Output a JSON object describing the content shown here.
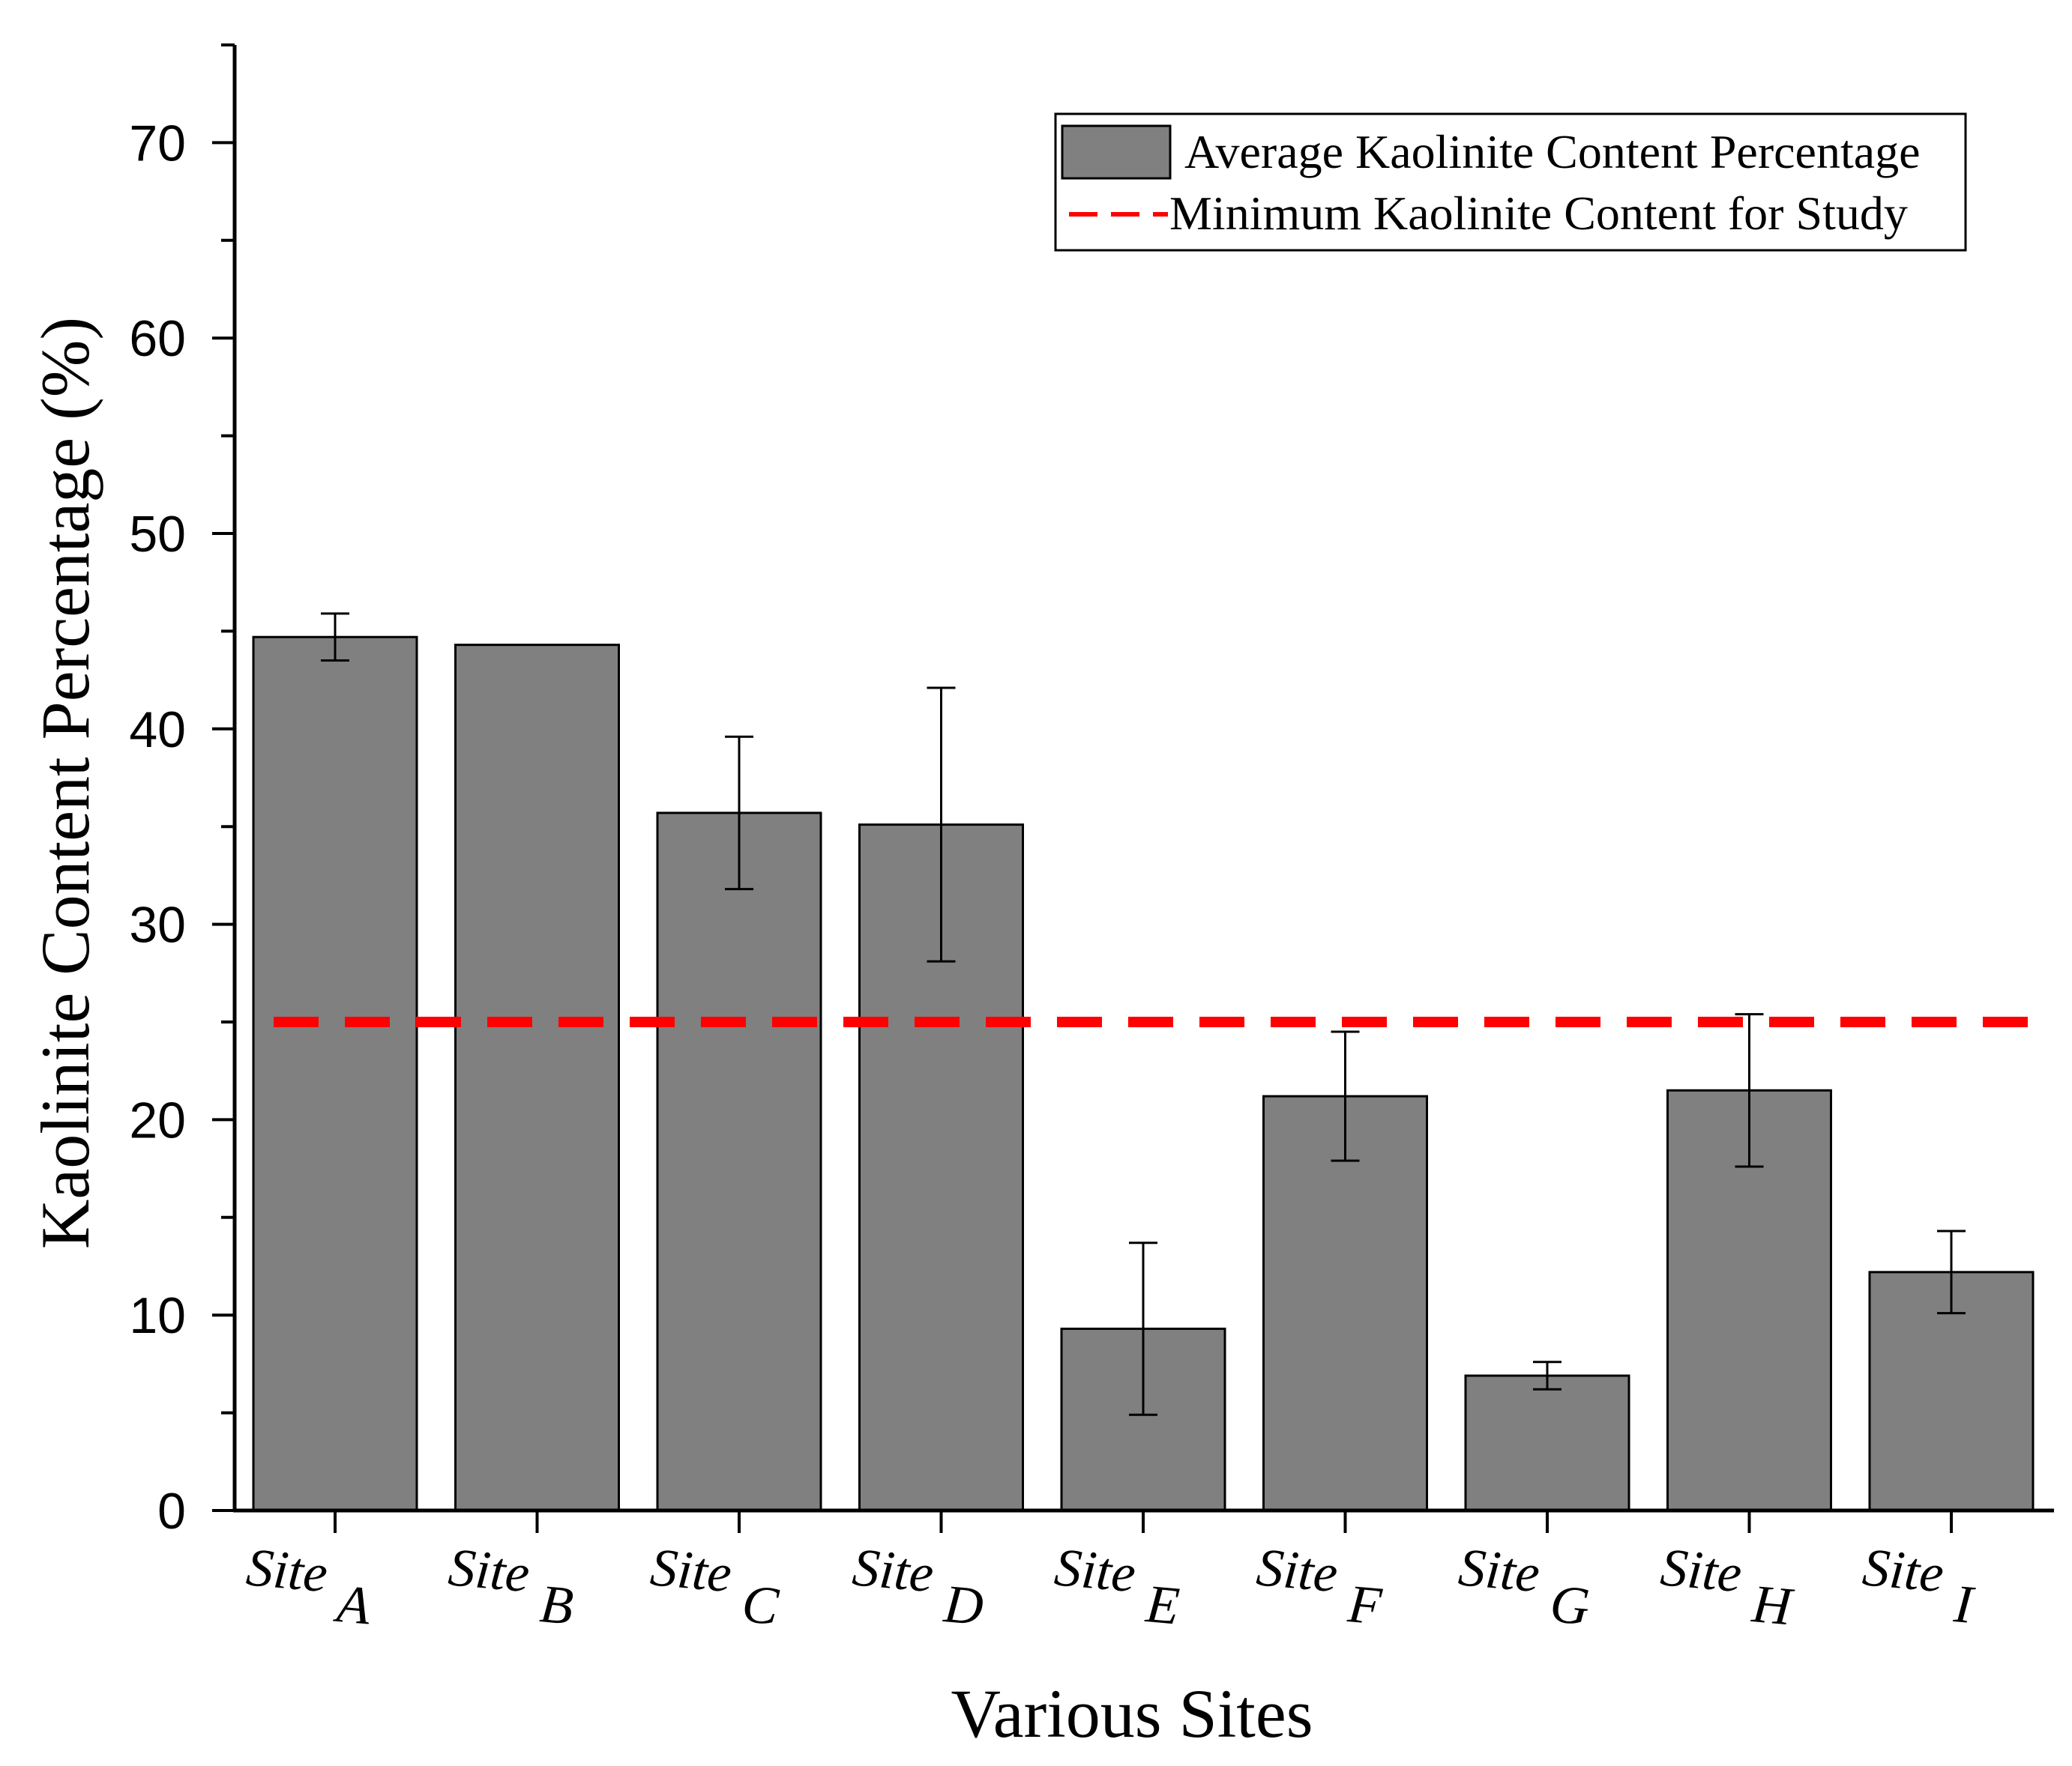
{
  "chart_data": {
    "type": "bar",
    "title": "",
    "xlabel": "Various Sites",
    "ylabel": "Kaolinite Content Percentage (%)",
    "ylim": [
      0,
      75
    ],
    "yticks": [
      0,
      10,
      20,
      30,
      40,
      50,
      60,
      70
    ],
    "grid": false,
    "legend_position": "top-right",
    "categories": [
      {
        "prefix": "Site",
        "letter": "A"
      },
      {
        "prefix": "Site",
        "letter": "B"
      },
      {
        "prefix": "Site",
        "letter": "C"
      },
      {
        "prefix": "Site",
        "letter": "D"
      },
      {
        "prefix": "Site",
        "letter": "E"
      },
      {
        "prefix": "Site",
        "letter": "F"
      },
      {
        "prefix": "Site",
        "letter": "G"
      },
      {
        "prefix": "Site",
        "letter": "H"
      },
      {
        "prefix": "Site",
        "letter": "I"
      }
    ],
    "series": [
      {
        "name": "Average Kaolinite Content Percentage",
        "color": "#808080",
        "values": [
          44.7,
          44.3,
          35.7,
          35.1,
          9.3,
          21.2,
          6.9,
          21.5,
          12.2
        ],
        "error": [
          1.2,
          null,
          3.9,
          7.0,
          4.4,
          3.3,
          0.7,
          3.9,
          2.1
        ]
      }
    ],
    "reference_line": {
      "name": "Minimum Kaolinite Content for Study",
      "value": 25,
      "color": "#ff0000",
      "style": "dashed"
    }
  }
}
